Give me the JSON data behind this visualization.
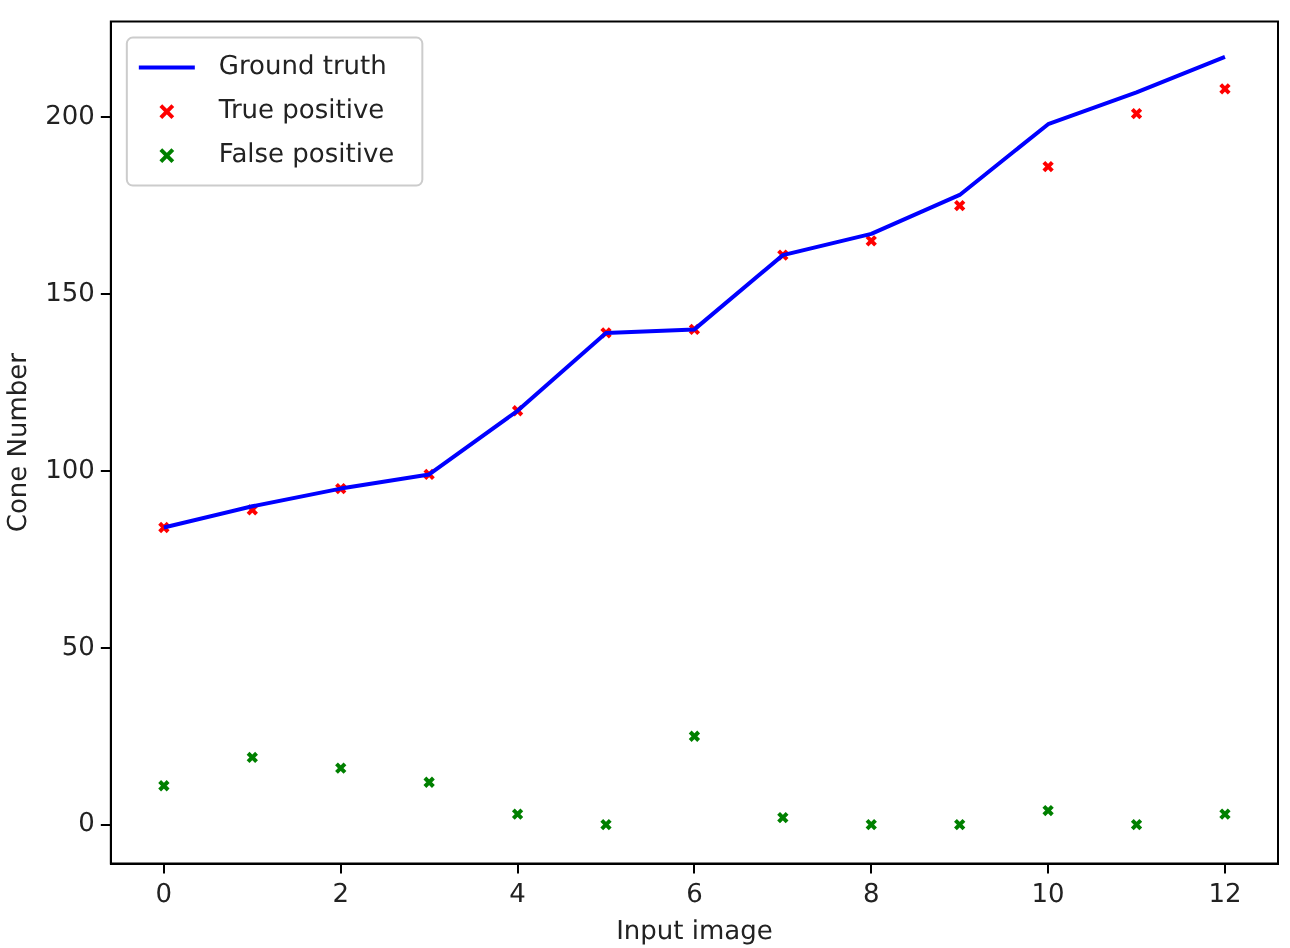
{
  "chart_data": {
    "type": "scatter",
    "xlabel": "Input image",
    "ylabel": "Cone Number",
    "x": [
      0,
      1,
      2,
      3,
      4,
      5,
      6,
      7,
      8,
      9,
      10,
      11,
      12
    ],
    "series": [
      {
        "name": "Ground truth",
        "type": "line",
        "color": "#0000ff",
        "marker": "none",
        "values": [
          84,
          90,
          95,
          99,
          117,
          139,
          140,
          161,
          167,
          178,
          198,
          207,
          217
        ]
      },
      {
        "name": "True positive",
        "color": "#ff0000",
        "marker": "cross",
        "values": [
          84,
          89,
          95,
          99,
          117,
          139,
          140,
          161,
          165,
          175,
          186,
          201,
          208
        ]
      },
      {
        "name": "False positive",
        "color": "#008000",
        "marker": "cross",
        "values": [
          11,
          19,
          16,
          12,
          3,
          0,
          25,
          2,
          0,
          0,
          4,
          0,
          3
        ]
      }
    ],
    "xlim": [
      -0.6,
      12.6
    ],
    "xticks": [
      0,
      2,
      4,
      6,
      8,
      10,
      12
    ],
    "ylim": [
      -11,
      227
    ],
    "yticks": [
      0,
      50,
      100,
      150,
      200
    ],
    "grid": false,
    "legend": "top left"
  }
}
